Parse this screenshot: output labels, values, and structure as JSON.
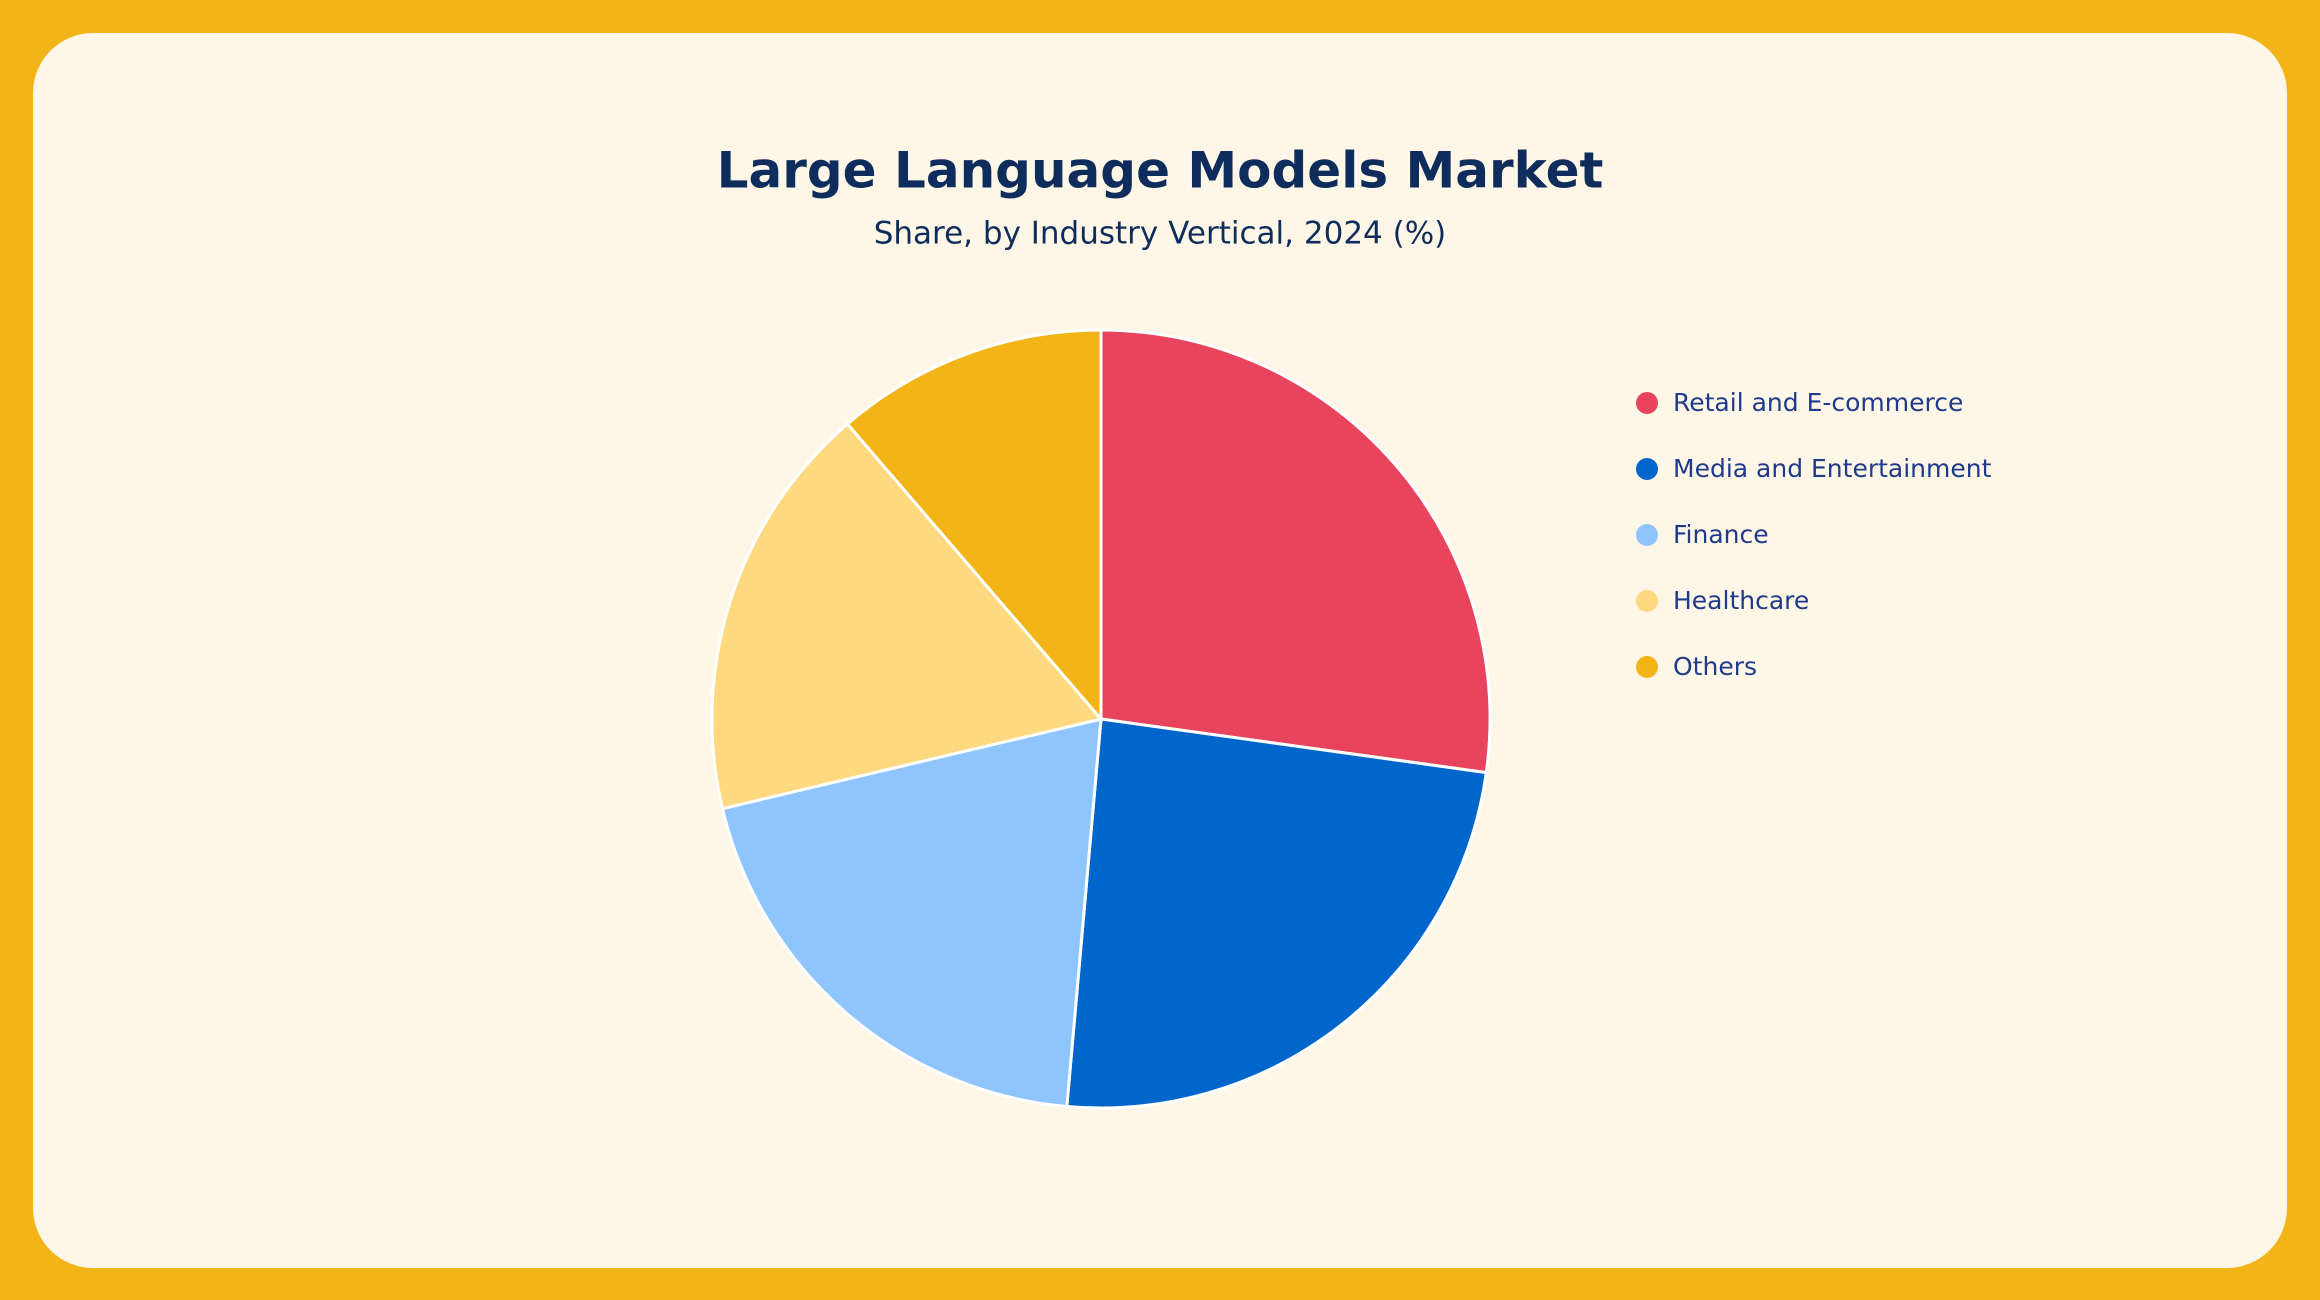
{
  "chart_data": {
    "type": "pie",
    "title": "Large Language Models Market",
    "subtitle": "Share, by Industry Vertical, 2024 (%)",
    "categories": [
      "Retail and E-commerce",
      "Media and Entertainment",
      "Finance",
      "Healthcare",
      "Others"
    ],
    "values": [
      27.2,
      24.2,
      19.9,
      17.4,
      11.3
    ],
    "colors": [
      "#e8445e",
      "#0066cc",
      "#8ec5fd",
      "#fed97f",
      "#f2b416"
    ],
    "legend": "right"
  }
}
